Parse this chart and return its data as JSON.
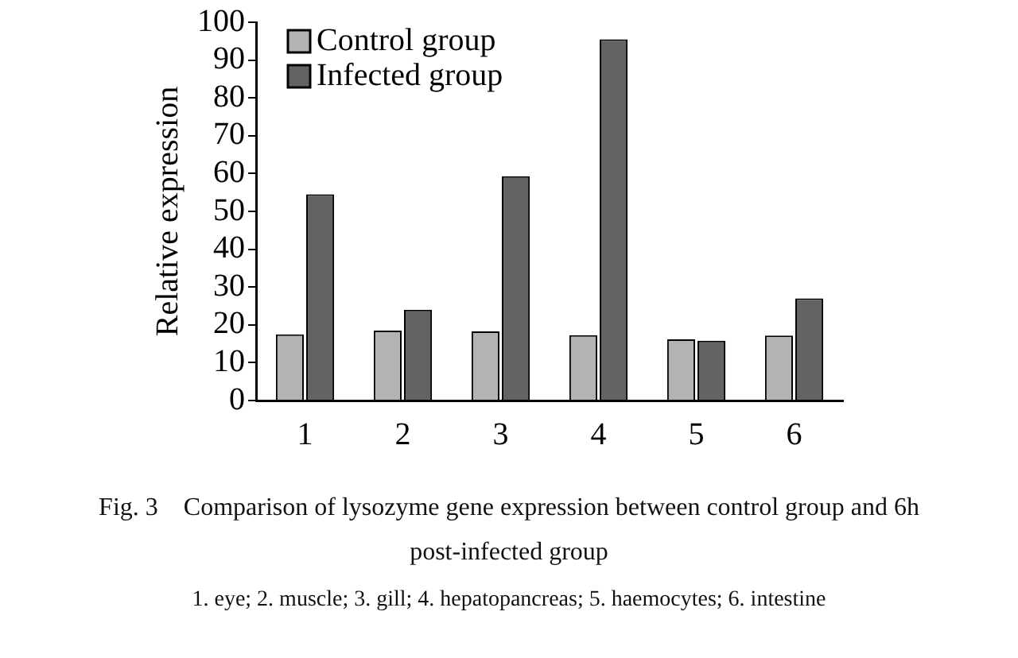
{
  "chart_data": {
    "type": "bar",
    "title": "Fig. 3　Comparison of lysozyme gene expression between control group and 6h post-infected group",
    "ylabel": "Relative expression",
    "categories": [
      "1",
      "2",
      "3",
      "4",
      "5",
      "6"
    ],
    "series": [
      {
        "name": "Control group",
        "color": "#b3b3b3",
        "values": [
          17.5,
          18.5,
          18.3,
          17.3,
          16.2,
          17.2
        ]
      },
      {
        "name": "Infected group",
        "color": "#636363",
        "values": [
          54.5,
          24,
          59.3,
          95.5,
          15.8,
          27
        ]
      }
    ],
    "ylim": [
      0,
      100
    ],
    "yticks": [
      0,
      10,
      20,
      30,
      40,
      50,
      60,
      70,
      80,
      90,
      100
    ],
    "grid": false,
    "legend": "top left",
    "annotations": [
      "1. eye; 2. muscle; 3. gill; 4. hepatopancreas; 5. haemocytes; 6. intestine"
    ]
  }
}
